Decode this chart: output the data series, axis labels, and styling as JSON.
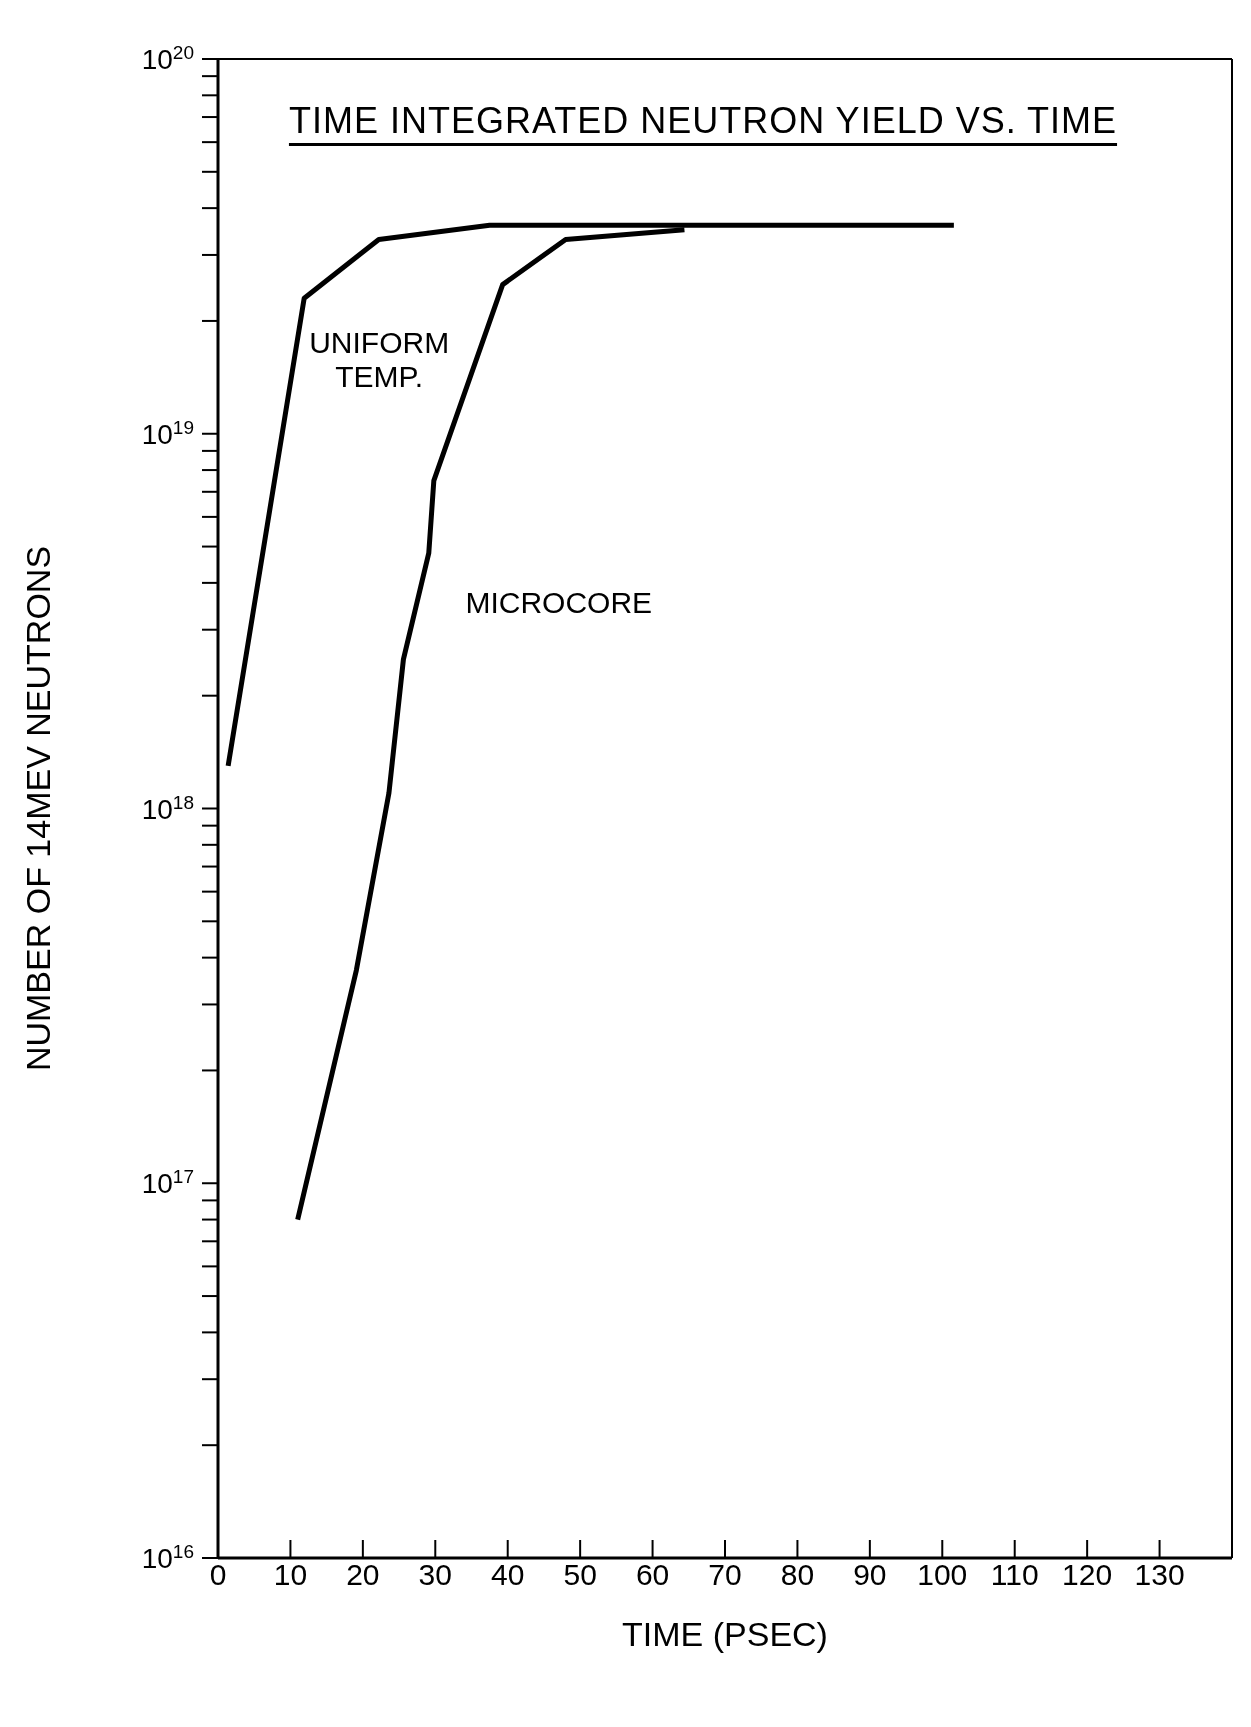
{
  "chart_data": {
    "type": "line",
    "title": "TIME INTEGRATED NEUTRON YIELD VS. TIME",
    "xlabel": "TIME (PSEC)",
    "ylabel": "NUMBER OF 14MEV NEUTRONS",
    "log": "y",
    "xlim": [
      0,
      140
    ],
    "xticks": [
      0,
      10,
      20,
      30,
      40,
      50,
      60,
      70,
      80,
      90,
      100,
      110,
      120,
      130
    ],
    "ylim": [
      1e+16,
      1e+20
    ],
    "yticks": [
      {
        "value": 1e+16,
        "label": "10$^{16}$"
      },
      {
        "value": 2e+16,
        "label": null
      },
      {
        "value": 3e+16,
        "label": null
      },
      {
        "value": 4e+16,
        "label": null
      },
      {
        "value": 5e+16,
        "label": null
      },
      {
        "value": 6e+16,
        "label": null
      },
      {
        "value": 7e+16,
        "label": null
      },
      {
        "value": 8e+16,
        "label": null
      },
      {
        "value": 9e+16,
        "label": null
      },
      {
        "value": 1e+17,
        "label": "10$^{17}$"
      },
      {
        "value": 2e+17,
        "label": null
      },
      {
        "value": 3e+17,
        "label": null
      },
      {
        "value": 4e+17,
        "label": null
      },
      {
        "value": 5e+17,
        "label": null
      },
      {
        "value": 6e+17,
        "label": null
      },
      {
        "value": 7e+17,
        "label": null
      },
      {
        "value": 8e+17,
        "label": null
      },
      {
        "value": 9e+17,
        "label": null
      },
      {
        "value": 1e+18,
        "label": "10$^{18}$"
      },
      {
        "value": 2e+18,
        "label": null
      },
      {
        "value": 3e+18,
        "label": null
      },
      {
        "value": 4e+18,
        "label": null
      },
      {
        "value": 5e+18,
        "label": null
      },
      {
        "value": 6e+18,
        "label": null
      },
      {
        "value": 7e+18,
        "label": null
      },
      {
        "value": 8e+18,
        "label": null
      },
      {
        "value": 9e+18,
        "label": null
      },
      {
        "value": 1e+19,
        "label": "10$^{19}$"
      },
      {
        "value": 2e+19,
        "label": null
      },
      {
        "value": 3e+19,
        "label": null
      },
      {
        "value": 4e+19,
        "label": null
      },
      {
        "value": 5e+19,
        "label": null
      },
      {
        "value": 6e+19,
        "label": null
      },
      {
        "value": 7e+19,
        "label": null
      },
      {
        "value": 8e+19,
        "label": null
      },
      {
        "value": 9e+19,
        "label": null
      },
      {
        "value": 1e+20,
        "label": "10$^{20}$"
      }
    ],
    "legend": false,
    "marker": "none",
    "line_style": "solid",
    "series": [
      {
        "name": "UNIFORM TEMP.",
        "color": "#000000",
        "x": [
          1.4,
          11.9,
          22.2,
          37.5,
          101.6
        ],
        "values": [
          1.3e+18,
          2.3e+19,
          3.3e+19,
          3.6e+19,
          3.6e+19
        ]
      },
      {
        "name": "MICROCORE",
        "color": "#000000",
        "x": [
          11.0,
          19.1,
          23.6,
          25.6,
          29.1,
          29.8,
          39.3,
          48.0,
          64.4
        ],
        "values": [
          8e+16,
          3.7e+17,
          1.1e+18,
          2.5e+18,
          4.8e+18,
          7.5e+18,
          2.5e+19,
          3.3e+19,
          3.5e+19
        ]
      }
    ]
  }
}
